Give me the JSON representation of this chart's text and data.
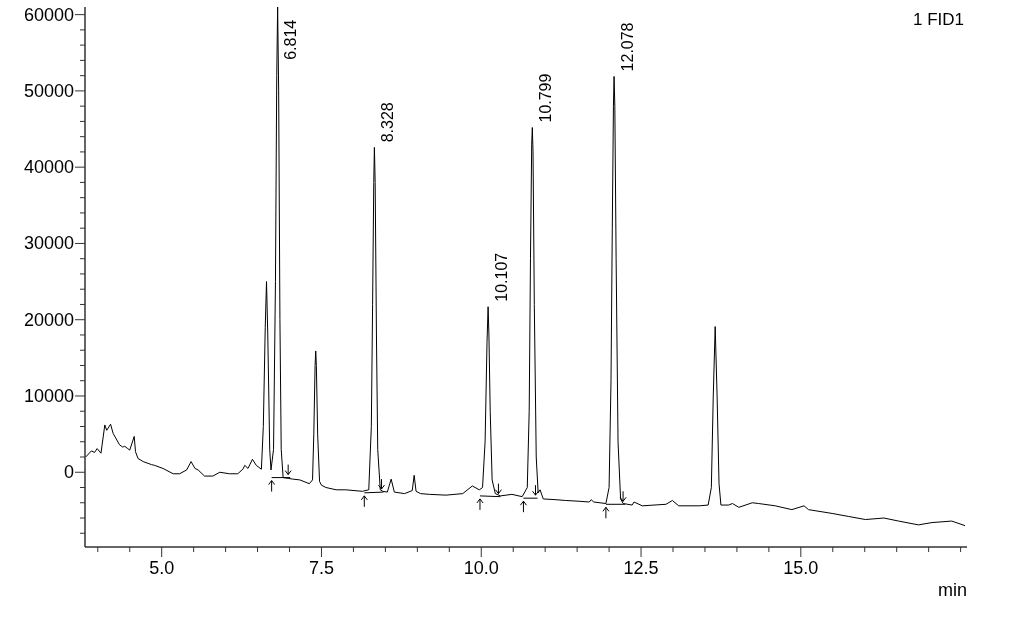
{
  "chart_data": {
    "type": "line",
    "title": "1 FID1",
    "xlabel": "min",
    "line_style": "solid",
    "xlim": [
      3.8,
      17.6
    ],
    "ylim": [
      -9800,
      61000
    ],
    "xticks": [
      {
        "value": 4,
        "label": null
      },
      {
        "value": 4.5,
        "label": null
      },
      {
        "value": 5,
        "label": "5.0"
      },
      {
        "value": 5.5,
        "label": null
      },
      {
        "value": 6,
        "label": null
      },
      {
        "value": 6.5,
        "label": null
      },
      {
        "value": 7,
        "label": null
      },
      7.5,
      {
        "value": 8,
        "label": null
      },
      {
        "value": 8.5,
        "label": null
      },
      {
        "value": 9,
        "label": null
      },
      {
        "value": 9.5,
        "label": null
      },
      {
        "value": 10,
        "label": "10.0"
      },
      {
        "value": 10.5,
        "label": null
      },
      {
        "value": 11,
        "label": null
      },
      {
        "value": 11.5,
        "label": null
      },
      {
        "value": 12,
        "label": null
      },
      12.5,
      {
        "value": 13,
        "label": null
      },
      {
        "value": 13.5,
        "label": null
      },
      {
        "value": 14,
        "label": null
      },
      {
        "value": 14.5,
        "label": null
      },
      {
        "value": 15,
        "label": "15.0"
      },
      {
        "value": 15.5,
        "label": null
      },
      {
        "value": 16,
        "label": null
      },
      {
        "value": 16.5,
        "label": null
      },
      {
        "value": 17,
        "label": null
      },
      {
        "value": 17.5,
        "label": null
      }
    ],
    "yticks": [
      {
        "value": -8000,
        "label": null
      },
      {
        "value": -6000,
        "label": null
      },
      {
        "value": -4000,
        "label": null
      },
      {
        "value": -2000,
        "label": null
      },
      0,
      {
        "value": 2000,
        "label": null
      },
      {
        "value": 4000,
        "label": null
      },
      {
        "value": 6000,
        "label": null
      },
      {
        "value": 8000,
        "label": null
      },
      10000,
      {
        "value": 12000,
        "label": null
      },
      {
        "value": 14000,
        "label": null
      },
      {
        "value": 16000,
        "label": null
      },
      {
        "value": 18000,
        "label": null
      },
      20000,
      {
        "value": 22000,
        "label": null
      },
      {
        "value": 24000,
        "label": null
      },
      {
        "value": 26000,
        "label": null
      },
      {
        "value": 28000,
        "label": null
      },
      30000,
      {
        "value": 32000,
        "label": null
      },
      {
        "value": 34000,
        "label": null
      },
      {
        "value": 36000,
        "label": null
      },
      {
        "value": 38000,
        "label": null
      },
      40000,
      {
        "value": 42000,
        "label": null
      },
      {
        "value": 44000,
        "label": null
      },
      {
        "value": 46000,
        "label": null
      },
      {
        "value": 48000,
        "label": null
      },
      50000,
      {
        "value": 52000,
        "label": null
      },
      {
        "value": 54000,
        "label": null
      },
      {
        "value": 56000,
        "label": null
      },
      {
        "value": 58000,
        "label": null
      },
      60000
    ],
    "annotations": [
      {
        "text": "6.814",
        "x": 6.814,
        "y": 61000
      },
      {
        "text": "8.328",
        "x": 8.328,
        "y": 42600
      },
      {
        "text": "10.107",
        "x": 10.107,
        "y": 21700
      },
      {
        "text": "10.799",
        "x": 10.799,
        "y": 45200
      },
      {
        "text": "12.078",
        "x": 12.078,
        "y": 51900
      }
    ],
    "series": [
      {
        "color": "#000000",
        "x": [
          3.81,
          3.9,
          3.95,
          3.99,
          4.05,
          4.11,
          4.14,
          4.2,
          4.24,
          4.34,
          4.39,
          4.42,
          4.47,
          4.5,
          4.57,
          4.59,
          4.63,
          4.71,
          4.84,
          4.89,
          5.02,
          5.18,
          5.28,
          5.39,
          5.46,
          5.52,
          5.57,
          5.67,
          5.8,
          5.91,
          6.06,
          6.19,
          6.27,
          6.3,
          6.35,
          6.42,
          6.48,
          6.56,
          6.59,
          6.62,
          6.64,
          6.66,
          6.69,
          6.71,
          6.75,
          6.78,
          6.8,
          6.814,
          6.83,
          6.85,
          6.87,
          6.9,
          6.98,
          7.05,
          7.16,
          7.31,
          7.36,
          7.38,
          7.4,
          7.41,
          7.42,
          7.44,
          7.47,
          7.5,
          7.57,
          7.73,
          7.88,
          8.14,
          8.24,
          8.28,
          8.3,
          8.318,
          8.328,
          8.34,
          8.36,
          8.38,
          8.42,
          8.46,
          8.53,
          8.59,
          8.64,
          8.8,
          8.92,
          8.95,
          8.98,
          9.05,
          9.19,
          9.45,
          9.71,
          9.86,
          9.97,
          10.02,
          10.06,
          10.09,
          10.107,
          10.12,
          10.14,
          10.17,
          10.22,
          10.3,
          10.48,
          10.64,
          10.72,
          10.75,
          10.77,
          10.789,
          10.799,
          10.81,
          10.83,
          10.86,
          10.89,
          10.92,
          10.97,
          11.17,
          11.32,
          11.53,
          11.69,
          11.72,
          11.76,
          11.95,
          12.0,
          12.03,
          12.05,
          12.068,
          12.078,
          12.09,
          12.11,
          12.14,
          12.18,
          12.22,
          12.36,
          12.39,
          12.52,
          12.89,
          12.99,
          13.09,
          13.41,
          13.55,
          13.6,
          13.63,
          13.66,
          13.69,
          13.72,
          13.75,
          13.87,
          13.93,
          14.03,
          14.24,
          14.34,
          14.6,
          14.86,
          15.05,
          15.12,
          15.49,
          15.75,
          16.01,
          16.3,
          16.53,
          16.84,
          17.05,
          17.36,
          17.57
        ],
        "values": [
          2000,
          2800,
          2600,
          3100,
          2500,
          6200,
          5500,
          6300,
          5100,
          3600,
          3300,
          3400,
          3100,
          2900,
          4700,
          2700,
          1800,
          1400,
          1000,
          900,
          500,
          -200,
          -200,
          300,
          1400,
          500,
          300,
          -500,
          -500,
          0,
          -200,
          -200,
          400,
          900,
          500,
          1700,
          900,
          400,
          6000,
          19000,
          25000,
          18000,
          3000,
          300,
          3000,
          25000,
          52000,
          61000,
          50000,
          20000,
          3000,
          -700,
          -800,
          -900,
          -1000,
          -1500,
          -1000,
          5000,
          14000,
          15900,
          14000,
          5000,
          -1200,
          -1700,
          -2000,
          -2300,
          -2300,
          -2500,
          -2300,
          6000,
          22000,
          38000,
          42600,
          38000,
          18000,
          3000,
          -2300,
          -2500,
          -2600,
          -900,
          -2600,
          -2800,
          -2400,
          -400,
          -2500,
          -2800,
          -2900,
          -3000,
          -2800,
          -1800,
          -2300,
          -2000,
          4000,
          17000,
          21700,
          18000,
          8000,
          -1000,
          -2800,
          -3100,
          -2900,
          -3200,
          -2000,
          8000,
          28000,
          43000,
          45200,
          42000,
          22000,
          2000,
          -2700,
          -2300,
          -3500,
          -3600,
          -3700,
          -3800,
          -3900,
          -3600,
          -3900,
          -4100,
          -2000,
          12000,
          32000,
          48000,
          51900,
          48000,
          28000,
          4000,
          -3500,
          -4100,
          -4300,
          -3900,
          -4400,
          -4200,
          -3700,
          -4400,
          -4400,
          -4300,
          -2000,
          10000,
          19100,
          10000,
          -1500,
          -4300,
          -4300,
          -4100,
          -4600,
          -4000,
          -4100,
          -4400,
          -4900,
          -4400,
          -4900,
          -5400,
          -5800,
          -6200,
          -6000,
          -6400,
          -6900,
          -6600,
          -6400,
          -7000
        ]
      },
      {
        "color": "#000000",
        "x": [
          6.72,
          7.01
        ],
        "values": [
          -700,
          -700
        ]
      },
      {
        "color": "#000000",
        "x": [
          8.17,
          8.47
        ],
        "values": [
          -2700,
          -2600
        ]
      },
      {
        "color": "#000000",
        "x": [
          9.98,
          10.3
        ],
        "values": [
          -3100,
          -3200
        ]
      },
      {
        "color": "#000000",
        "x": [
          10.66,
          10.88
        ],
        "values": [
          -3400,
          -3400
        ]
      },
      {
        "color": "#000000",
        "x": [
          11.95,
          12.25
        ],
        "values": [
          -4200,
          -4200
        ]
      }
    ]
  }
}
